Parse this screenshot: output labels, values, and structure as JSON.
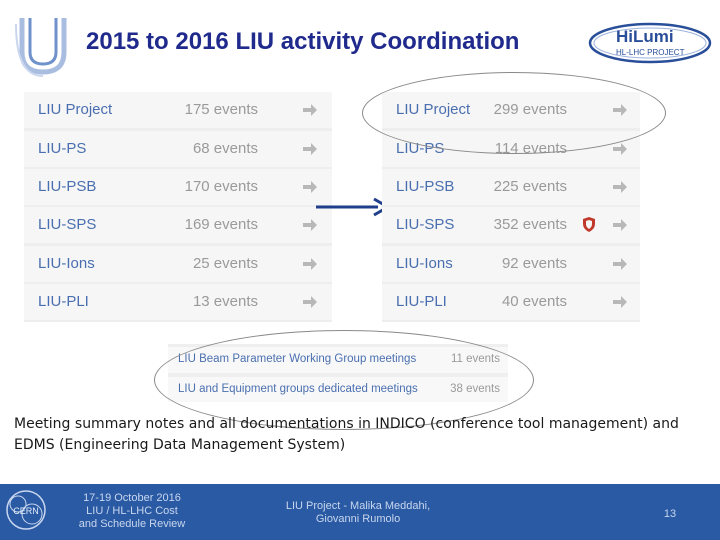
{
  "title": "2015 to 2016 LIU activity Coordination",
  "logos": {
    "left_mark": "U",
    "hilumi_name": "HiLumi",
    "hilumi_sub": "HL-LHC PROJECT"
  },
  "table_2015": [
    {
      "name": "LIU Project",
      "count": "175 events"
    },
    {
      "name": "LIU-PS",
      "count": "68 events"
    },
    {
      "name": "LIU-PSB",
      "count": "170 events"
    },
    {
      "name": "LIU-SPS",
      "count": "169 events"
    },
    {
      "name": "LIU-Ions",
      "count": "25 events"
    },
    {
      "name": "LIU-PLI",
      "count": "13 events"
    }
  ],
  "table_2016": [
    {
      "name": "LIU Project",
      "count": "299 events"
    },
    {
      "name": "LIU-PS",
      "count": "114 events"
    },
    {
      "name": "LIU-PSB",
      "count": "225 events"
    },
    {
      "name": "LIU-SPS",
      "count": "352 events"
    },
    {
      "name": "LIU-Ions",
      "count": "92 events"
    },
    {
      "name": "LIU-PLI",
      "count": "40 events"
    }
  ],
  "meetings": [
    {
      "name": "LIU Beam Parameter Working Group meetings",
      "count": "11 events"
    },
    {
      "name": "LIU and Equipment groups dedicated meetings",
      "count": "38 events"
    }
  ],
  "notes": "Meeting summary notes and all documentations in INDICO (conference tool management) and EDMS (Engineering Data Management System)",
  "footer": {
    "event": [
      "17-19 October 2016",
      "LIU / HL-LHC  Cost",
      "and Schedule Review"
    ],
    "authors": [
      "LIU Project - Malika Meddahi,",
      "Giovanni Rumolo"
    ],
    "page": "13",
    "cern_label": "CERN"
  },
  "colors": {
    "title": "#1f2a8c",
    "link": "#4a6fb0",
    "footer": "#2a5aa3",
    "arrow": "#1f3f8a"
  }
}
